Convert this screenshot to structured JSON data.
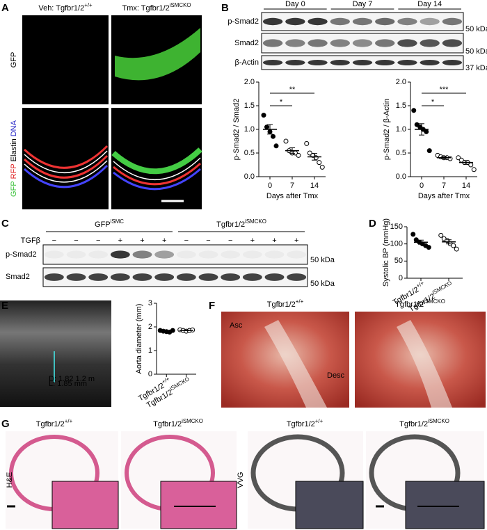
{
  "panel_labels": [
    "A",
    "B",
    "C",
    "D",
    "E",
    "F",
    "G"
  ],
  "a": {
    "columns": [
      {
        "text": "Veh: Tgfbr1/2",
        "sup": "+/+"
      },
      {
        "text": "Tmx: Tgfbr1/2",
        "sup": "iSMCKO"
      }
    ],
    "row1_label": {
      "text": "GFP",
      "color": "#3cc23c"
    },
    "row2_label": [
      {
        "text": "GFP",
        "color": "#3cc23c"
      },
      {
        "text": "RFP",
        "color": "#e02828"
      },
      {
        "text": "Elastin",
        "color": "#000000"
      },
      {
        "text": "DNA",
        "color": "#2828c8"
      }
    ]
  },
  "b": {
    "days": [
      "Day 0",
      "Day 7",
      "Day 14"
    ],
    "blots": [
      "p-Smad2",
      "Smad2",
      "β-Actin"
    ],
    "markers": [
      "50 kDa",
      "50 kDa",
      "37 kDa"
    ],
    "plots": [
      {
        "y_label": "p-Smad2 / Smad2",
        "x_label": "Days after Tmx",
        "categories": [
          0,
          7,
          14
        ],
        "groups": [
          [
            1.3,
            1.05,
            0.95,
            0.85,
            0.65
          ],
          [
            0.75,
            0.55,
            0.5,
            0.5,
            0.45
          ],
          [
            0.7,
            0.5,
            0.45,
            0.4,
            0.3,
            0.2
          ]
        ],
        "means": [
          1.0,
          0.55,
          0.42
        ],
        "sems": [
          0.1,
          0.06,
          0.07
        ],
        "filled": [
          true,
          false,
          false
        ],
        "ylim": [
          0,
          2
        ],
        "yticks": [
          {
            "value": 0,
            "label": "0.0"
          },
          {
            "value": 0.5,
            "label": "0.5"
          },
          {
            "value": 1,
            "label": "1.0"
          },
          {
            "value": 1.5,
            "label": "1.5"
          },
          {
            "value": 2,
            "label": "2.0"
          }
        ],
        "significance": [
          "*",
          "**"
        ]
      },
      {
        "y_label": "p-Smad2 / β-Actin",
        "x_label": "Days after Tmx",
        "categories": [
          0,
          7,
          14
        ],
        "groups": [
          [
            1.4,
            1.1,
            1.05,
            1.0,
            0.95,
            0.55
          ],
          [
            0.45,
            0.42,
            0.4,
            0.4,
            0.38
          ],
          [
            0.4,
            0.35,
            0.3,
            0.3,
            0.25,
            0.15
          ]
        ],
        "means": [
          1.0,
          0.4,
          0.3
        ],
        "sems": [
          0.12,
          0.02,
          0.04
        ],
        "filled": [
          true,
          false,
          false
        ],
        "ylim": [
          0,
          2
        ],
        "yticks": [
          {
            "value": 0,
            "label": "0.0"
          },
          {
            "value": 0.5,
            "label": "0.5"
          },
          {
            "value": 1,
            "label": "1.0"
          },
          {
            "value": 1.5,
            "label": "1.5"
          },
          {
            "value": 2,
            "label": "2.0"
          }
        ],
        "significance": [
          "*",
          "***"
        ]
      }
    ]
  },
  "c": {
    "treatment_label": "TGFβ",
    "groups": [
      {
        "text": "GFP",
        "sup": "iSMC"
      },
      {
        "text": "Tgfbr1/2",
        "sup": "iSMCKO"
      }
    ],
    "treatment": [
      "−",
      "−",
      "−",
      "+",
      "+",
      "+",
      "−",
      "−",
      "−",
      "+",
      "+",
      "+"
    ],
    "blots": [
      "p-Smad2",
      "Smad2"
    ],
    "markers": [
      "50 kDa",
      "50 kDa"
    ]
  },
  "d": {
    "y_label": "Systolic BP (mmHg)",
    "categories": [
      {
        "text": "Tgfbr1/2",
        "sup": "+/+"
      },
      {
        "text": "Tgfbr1/2",
        "sup": "iSMCKO"
      }
    ],
    "groups": [
      [
        128,
        112,
        105,
        100,
        95,
        90
      ],
      [
        125,
        115,
        110,
        100,
        95,
        85
      ]
    ],
    "means": [
      105,
      106
    ],
    "sems": [
      6,
      6
    ],
    "filled": [
      true,
      false
    ],
    "ylim": [
      0,
      150
    ],
    "yticks": [
      0,
      50,
      100,
      150
    ]
  },
  "e": {
    "ultrasound_text": [
      "D: 1.82 1.2 m",
      "L: 1.85 mm"
    ],
    "y_label": "Aorta diameter (mm)",
    "categories": [
      {
        "text": "Tgfbr1/2",
        "sup": "+/+"
      },
      {
        "text": "Tgfbr1/2",
        "sup": "iSMCKO"
      }
    ],
    "groups": [
      [
        1.85,
        1.82,
        1.8,
        1.78,
        1.85
      ],
      [
        1.88,
        1.85,
        1.82,
        1.85,
        1.87
      ]
    ],
    "means": [
      1.82,
      1.85
    ],
    "sems": [
      0.02,
      0.01
    ],
    "filled": [
      true,
      false
    ],
    "ylim": [
      0,
      3
    ],
    "yticks": [
      0,
      1,
      2,
      3
    ]
  },
  "f": {
    "titles": [
      {
        "text": "Tgfbr1/2",
        "sup": "+/+"
      },
      {
        "text": "Tgfbr1/2",
        "sup": "iSMCKO"
      }
    ],
    "annotations": [
      "Asc",
      "Desc"
    ]
  },
  "g": {
    "titles": [
      {
        "text": "Tgfbr1/2",
        "sup": "+/+"
      },
      {
        "text": "Tgfbr1/2",
        "sup": "iSMCKO"
      },
      {
        "text": "Tgfbr1/2",
        "sup": "+/+"
      },
      {
        "text": "Tgfbr1/2",
        "sup": "iSMCKO"
      }
    ],
    "stains": [
      "H&E",
      "VVG"
    ]
  }
}
